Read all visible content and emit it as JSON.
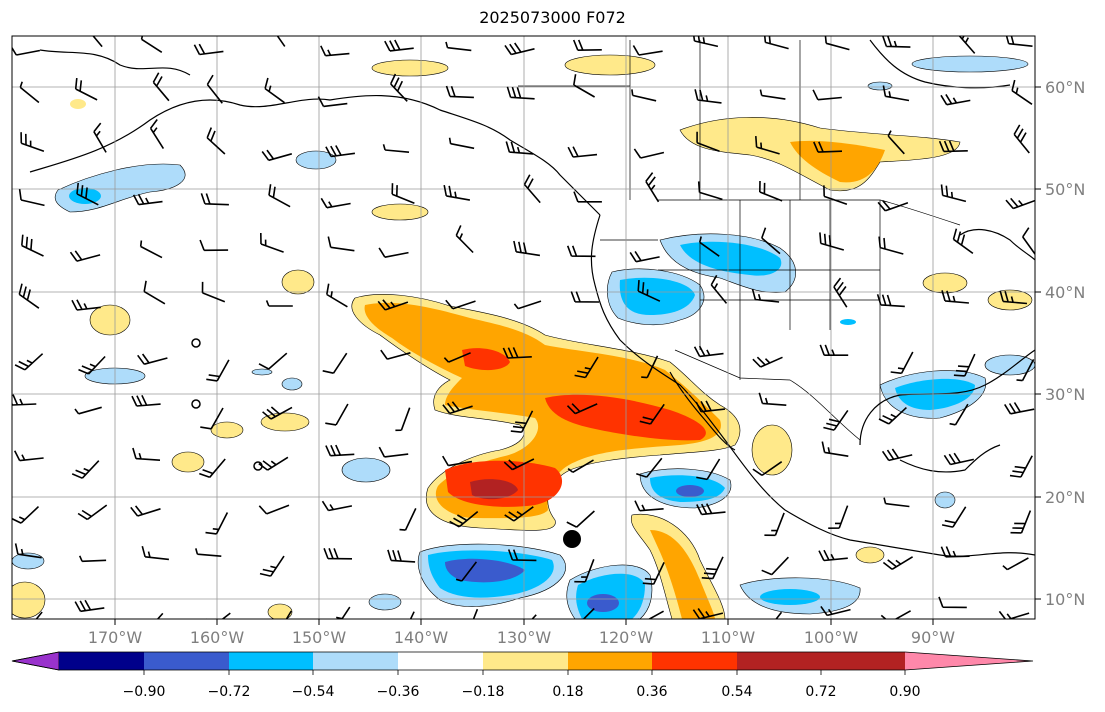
{
  "title": "2025073000 F072",
  "lat_labels": [
    "60°N",
    "50°N",
    "40°N",
    "30°N",
    "20°N",
    "10°N"
  ],
  "lon_labels": [
    "170°W",
    "160°W",
    "150°W",
    "140°W",
    "130°W",
    "120°W",
    "110°W",
    "100°W",
    "90°W"
  ],
  "colorbar": {
    "tick_labels": [
      "−0.90",
      "−0.72",
      "−0.54",
      "−0.36",
      "−0.18",
      "0.18",
      "0.36",
      "0.54",
      "0.72",
      "0.90"
    ],
    "colors": [
      "#9932cc",
      "#00008b",
      "#3a5bcd",
      "#00bfff",
      "#aedcfa",
      "#ffffff",
      "#ffe98a",
      "#ffa500",
      "#ff3300",
      "#b22222",
      "#ff88aa"
    ]
  },
  "storm_marker": "filled-circle"
}
